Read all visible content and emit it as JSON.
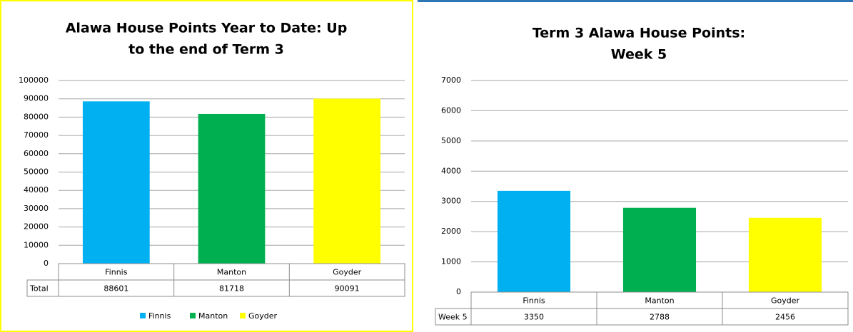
{
  "chart_data": [
    {
      "type": "bar",
      "title": [
        "Alawa House Points Year to Date: Up",
        "to the end of Term 3"
      ],
      "categories": [
        "Finnis",
        "Manton",
        "Goyder"
      ],
      "colors": [
        "#00b0f0",
        "#00b050",
        "#ffff00"
      ],
      "series": [
        {
          "name": "Total",
          "values": [
            88601,
            81718,
            90091
          ]
        }
      ],
      "ylim": [
        0,
        100000
      ],
      "yticks": [
        0,
        10000,
        20000,
        30000,
        40000,
        50000,
        60000,
        70000,
        80000,
        90000,
        100000
      ],
      "grid": true,
      "legend": true,
      "data_table": true
    },
    {
      "type": "bar",
      "title": [
        "Term 3 Alawa House Points:",
        "Week 5"
      ],
      "categories": [
        "Finnis",
        "Manton",
        "Goyder"
      ],
      "colors": [
        "#00b0f0",
        "#00b050",
        "#ffff00"
      ],
      "series": [
        {
          "name": "Week 5",
          "values": [
            3350,
            2788,
            2456
          ]
        }
      ],
      "ylim": [
        0,
        7000
      ],
      "yticks": [
        0,
        1000,
        2000,
        3000,
        4000,
        5000,
        6000,
        7000
      ],
      "grid": true,
      "legend": false,
      "data_table": true
    }
  ]
}
